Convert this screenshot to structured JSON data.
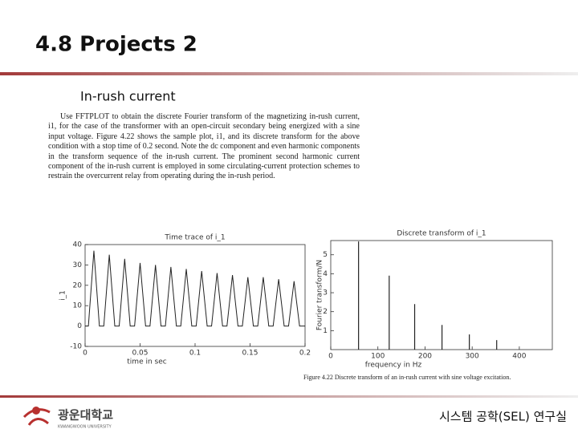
{
  "header": {
    "title": "4.8 Projects 2",
    "subtitle": "In-rush current"
  },
  "text": {
    "paragraph": "Use FFTPLOT to obtain the discrete Fourier transform of the magnetizing in-rush current, i1, for the case of the transformer with an open-circuit secondary being energized with a sine input voltage. Figure 4.22 shows the sample plot, i1, and its discrete transform for the above condition with a stop time of 0.2 second. Note the dc component and even harmonic components in the transform sequence of the in-rush current. The prominent second harmonic current component of the in-rush current is employed in some circulating-current protection schemes to restrain the overcurrent relay from operating during the in-rush period."
  },
  "chart_data": [
    {
      "type": "line",
      "title": "Time trace of i_1",
      "x_label": "time in sec",
      "y_label": "i_1",
      "xlim": [
        0,
        0.2
      ],
      "ylim": [
        -10,
        40
      ],
      "xticks": [
        0,
        0.05,
        0.1,
        0.15,
        0.2
      ],
      "yticks": [
        -10,
        0,
        10,
        20,
        30,
        40
      ],
      "series": [
        {
          "color": "#222222",
          "x": [
            0,
            0.003,
            0.008,
            0.013,
            0.017,
            0.022,
            0.027,
            0.031,
            0.036,
            0.041,
            0.045,
            0.05,
            0.055,
            0.059,
            0.064,
            0.069,
            0.073,
            0.078,
            0.083,
            0.087,
            0.092,
            0.097,
            0.101,
            0.106,
            0.111,
            0.115,
            0.12,
            0.125,
            0.129,
            0.134,
            0.139,
            0.143,
            0.148,
            0.153,
            0.157,
            0.162,
            0.167,
            0.171,
            0.176,
            0.181,
            0.185,
            0.19,
            0.195,
            0.2
          ],
          "values": [
            0,
            0,
            37,
            0,
            0,
            35,
            0,
            0,
            33,
            0,
            0,
            31,
            0,
            0,
            30,
            0,
            0,
            29,
            0,
            0,
            28,
            0,
            0,
            27,
            0,
            0,
            26,
            0,
            0,
            25,
            0,
            0,
            24,
            0,
            0,
            24,
            0,
            0,
            23,
            0,
            0,
            22,
            0,
            0
          ]
        }
      ]
    },
    {
      "type": "bar",
      "title": "Discrete transform of i_1",
      "x_label": "frequency in Hz",
      "y_label": "Fourier transform/N",
      "xlim": [
        0,
        470
      ],
      "ylim": [
        0,
        5.75
      ],
      "xticks": [
        0,
        100,
        200,
        300,
        400
      ],
      "yticks": [
        1,
        2,
        3,
        4,
        5
      ],
      "series": [
        {
          "color": "#222222",
          "x": [
            59,
            124,
            178,
            236,
            294,
            352
          ],
          "values": [
            5.7,
            3.9,
            2.4,
            1.3,
            0.8,
            0.5
          ]
        }
      ]
    }
  ],
  "figure_caption": "Figure 4.22   Discrete transform of an in-rush current with sine voltage excitation.",
  "footer": {
    "logo": "광운대학교",
    "logo_sub": "KWANGWOON UNIVERSITY",
    "lab": "시스템 공학(SEL) 연구실"
  }
}
